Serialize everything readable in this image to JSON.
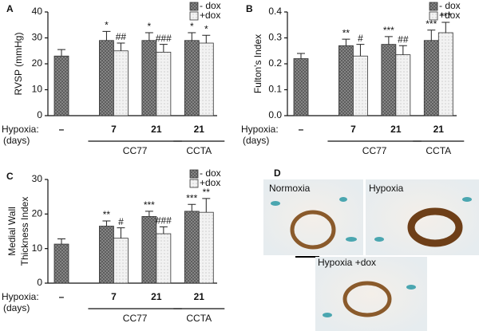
{
  "chart_data": [
    {
      "type": "bar",
      "panel": "A",
      "ylabel": [
        "RVSP (mmHg)"
      ],
      "xlabel": "Hypoxia:",
      "xlabel_unit": "(days)",
      "categories": [
        "–",
        "7",
        "21",
        "21"
      ],
      "groups": [
        {
          "name": "CC77",
          "from": 1,
          "to": 2
        },
        {
          "name": "CCTA",
          "from": 3,
          "to": 3
        }
      ],
      "series": [
        {
          "name": "- dox",
          "color": "#8a8a8a",
          "values": [
            23,
            29,
            29,
            29
          ],
          "errors": [
            2.5,
            3.5,
            3,
            3
          ],
          "annotations": [
            null,
            "*",
            "*",
            "*"
          ]
        },
        {
          "name": "+dox",
          "color": "#f2f2f2",
          "values": [
            null,
            25,
            24.5,
            28
          ],
          "errors": [
            null,
            3,
            3,
            3
          ],
          "annotations": [
            null,
            "##",
            "###",
            "*"
          ]
        }
      ],
      "ylim": [
        0,
        40
      ],
      "yticks": [
        0,
        10,
        20,
        30,
        40
      ]
    },
    {
      "type": "bar",
      "panel": "B",
      "ylabel": [
        "Fulton's Index"
      ],
      "xlabel": "Hypoxia:",
      "xlabel_unit": "(days)",
      "categories": [
        "–",
        "7",
        "21",
        "21"
      ],
      "groups": [
        {
          "name": "CC77",
          "from": 1,
          "to": 2
        },
        {
          "name": "CCTA",
          "from": 3,
          "to": 3
        }
      ],
      "series": [
        {
          "name": "- dox",
          "color": "#8a8a8a",
          "values": [
            0.22,
            0.27,
            0.275,
            0.29
          ],
          "errors": [
            0.02,
            0.025,
            0.03,
            0.04
          ],
          "annotations": [
            null,
            "**",
            "***",
            "***"
          ]
        },
        {
          "name": "+dox",
          "color": "#f2f2f2",
          "values": [
            null,
            0.23,
            0.235,
            0.32
          ],
          "errors": [
            null,
            0.045,
            0.035,
            0.04
          ],
          "annotations": [
            null,
            "#",
            "##",
            "***"
          ]
        }
      ],
      "ylim": [
        0,
        0.4
      ],
      "yticks": [
        {
          "value": 0,
          "label": "0.0"
        },
        0.1,
        0.2,
        0.3,
        0.4
      ]
    },
    {
      "type": "bar",
      "panel": "C",
      "ylabel": [
        "Medial Wall",
        "Thickness Index"
      ],
      "xlabel": "Hypoxia:",
      "xlabel_unit": "(days)",
      "categories": [
        "–",
        "7",
        "21",
        "21"
      ],
      "groups": [
        {
          "name": "CC77",
          "from": 1,
          "to": 2
        },
        {
          "name": "CCTA",
          "from": 3,
          "to": 3
        }
      ],
      "series": [
        {
          "name": "- dox",
          "color": "#8a8a8a",
          "values": [
            11.3,
            16.5,
            19.3,
            20.8
          ],
          "errors": [
            1.5,
            1.5,
            1.5,
            2
          ],
          "annotations": [
            null,
            "**",
            "***",
            "***"
          ]
        },
        {
          "name": "+dox",
          "color": "#f2f2f2",
          "values": [
            null,
            13,
            14.3,
            20.5
          ],
          "errors": [
            null,
            3,
            2,
            4
          ],
          "annotations": [
            null,
            "#",
            "###",
            "**"
          ]
        }
      ],
      "ylim": [
        0,
        30
      ],
      "yticks": [
        0,
        10,
        20,
        30
      ]
    }
  ],
  "panel_d": {
    "label": "D",
    "images": [
      "Normoxia",
      "Hypoxia",
      "Hypoxia +dox"
    ]
  }
}
